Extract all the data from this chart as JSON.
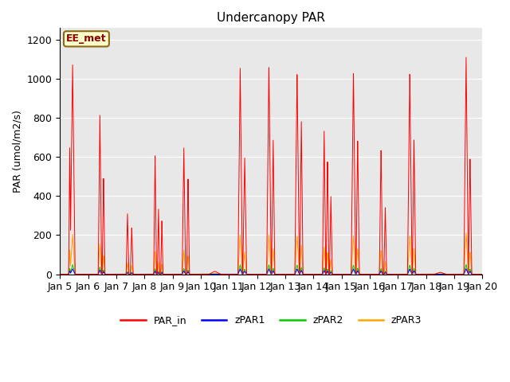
{
  "title": "Undercanopy PAR",
  "ylabel": "PAR (umol/m2/s)",
  "xlabel": "",
  "ylim": [
    0,
    1260
  ],
  "xlim": [
    5,
    20
  ],
  "background_color": "#e8e8e8",
  "annotation_text": "EE_met",
  "annotation_bg": "#ffffcc",
  "annotation_border": "#8b6914",
  "annotation_text_color": "#8b0000",
  "series_colors": {
    "PAR_in": "#ff0000",
    "zPAR1": "#0000ff",
    "zPAR2": "#00cc00",
    "zPAR3": "#ffa500"
  },
  "yticks": [
    0,
    200,
    400,
    600,
    800,
    1000,
    1200
  ],
  "xtick_labels": [
    "Jan 5",
    "Jan 6",
    "Jan 7",
    "Jan 8",
    "Jan 9",
    "Jan 10",
    "Jan 11",
    "Jan 12",
    "Jan 13",
    "Jan 14",
    "Jan 15",
    "Jan 16",
    "Jan 17",
    "Jan 18",
    "Jan 19",
    "Jan 20"
  ],
  "xtick_positions": [
    5,
    6,
    7,
    8,
    9,
    10,
    11,
    12,
    13,
    14,
    15,
    16,
    17,
    18,
    19,
    20
  ],
  "zPAR3_scale": 0.19,
  "zPAR2_scale": 0.045,
  "zPAR1_scale": 0.025
}
